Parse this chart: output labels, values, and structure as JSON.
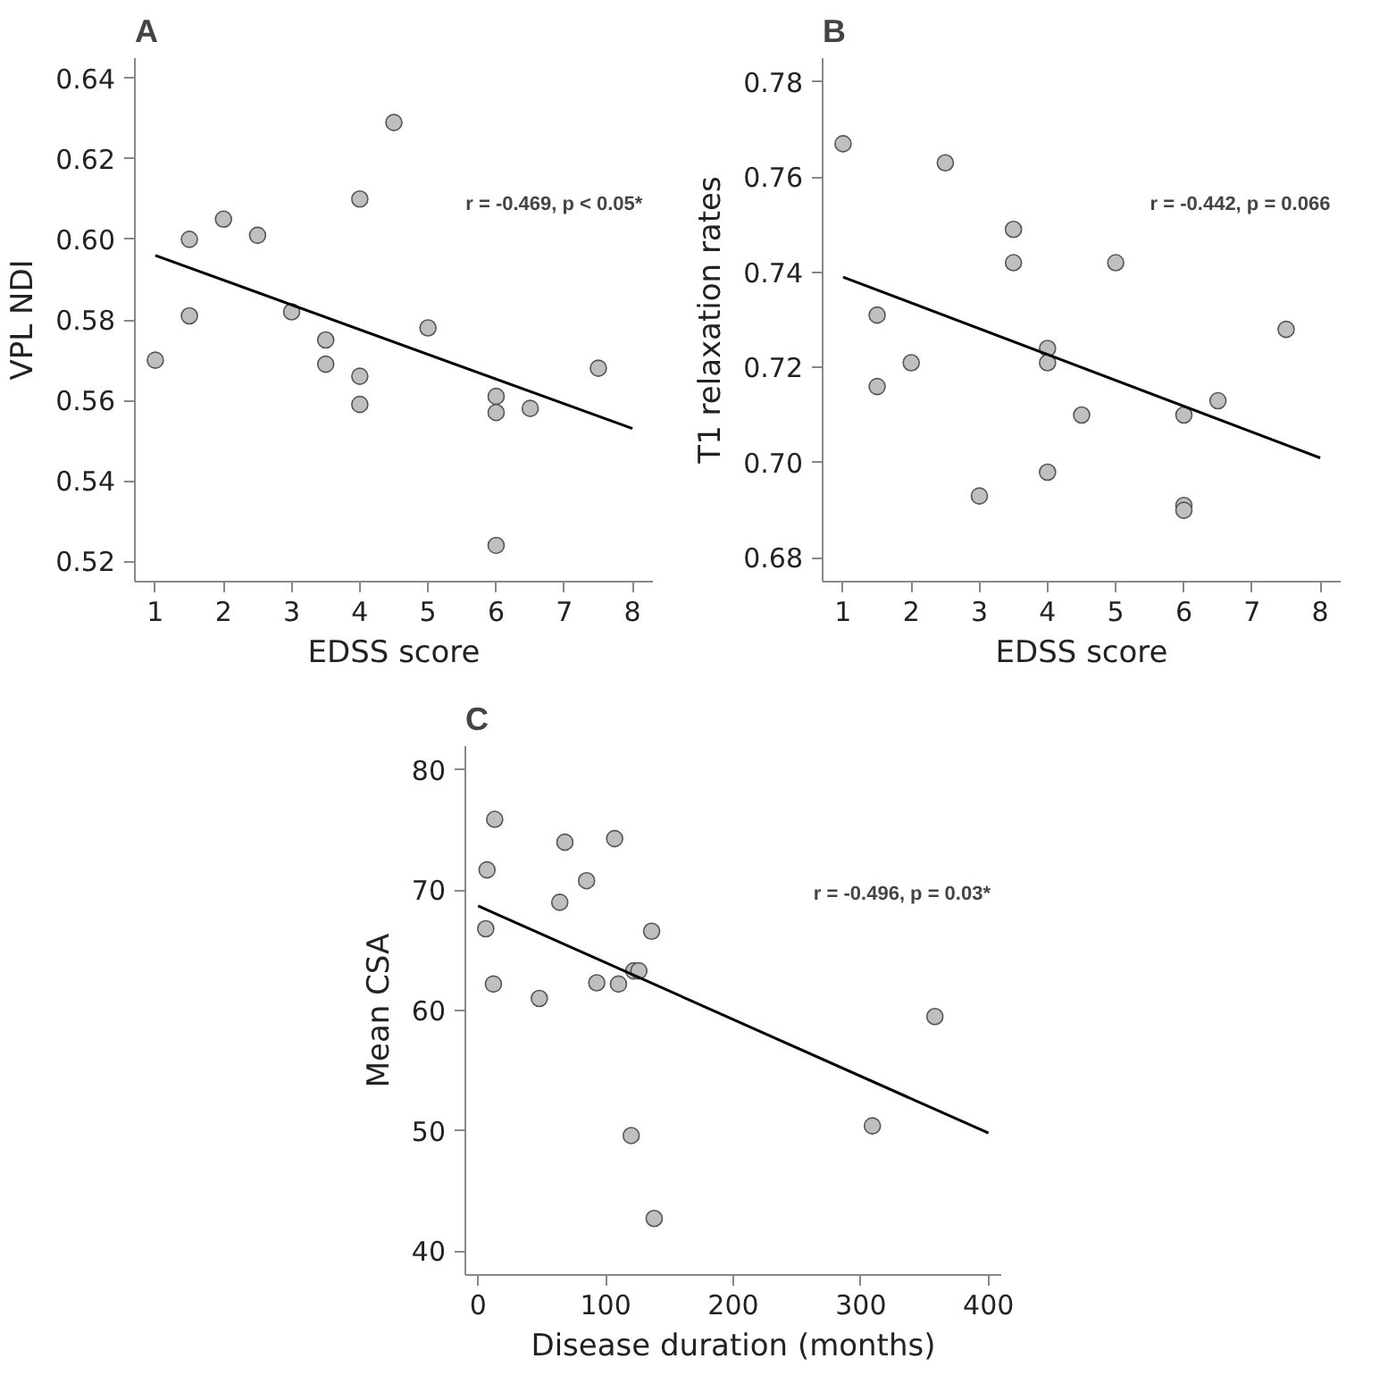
{
  "chart_data": [
    {
      "type": "scatter",
      "title": "A",
      "xlabel": "EDSS score",
      "ylabel": "VPL NDI",
      "xlim": [
        0.7,
        8.3
      ],
      "ylim": [
        0.515,
        0.645
      ],
      "xticks": [
        1,
        2,
        3,
        4,
        5,
        6,
        7,
        8
      ],
      "yticks": [
        0.52,
        0.54,
        0.56,
        0.58,
        {
          "value": 0.6,
          "label": "0.60"
        },
        0.62,
        0.64
      ],
      "grid": false,
      "annotations": [
        "r = -0.469, p < 0.05*"
      ],
      "series": [
        {
          "color": "#bfbfbf",
          "marker": "circle",
          "x": [
            1,
            1.5,
            1.5,
            2,
            2.5,
            3,
            3.5,
            3.5,
            4,
            4,
            4,
            4.5,
            5,
            6,
            6,
            6,
            6.5,
            7.5
          ],
          "values": [
            0.57,
            0.6,
            0.581,
            0.605,
            0.601,
            0.582,
            0.575,
            0.569,
            0.61,
            0.566,
            0.559,
            0.629,
            0.578,
            0.561,
            0.557,
            0.524,
            0.558,
            0.568
          ]
        },
        {
          "type": "line",
          "marker": "none",
          "color": "#000000",
          "x": [
            1,
            8
          ],
          "values": [
            0.596,
            0.553
          ]
        }
      ]
    },
    {
      "type": "scatter",
      "title": "B",
      "xlabel": "EDSS score",
      "ylabel": "T1 relaxation rates",
      "xlim": [
        0.7,
        8.3
      ],
      "ylim": [
        0.675,
        0.785
      ],
      "xticks": [
        1,
        2,
        3,
        4,
        5,
        6,
        7,
        8
      ],
      "yticks": [
        0.68,
        {
          "value": 0.7,
          "label": "0.70"
        },
        0.72,
        0.74,
        0.76,
        0.78
      ],
      "grid": false,
      "annotations": [
        "r = -0.442, p = 0.066"
      ],
      "series": [
        {
          "color": "#bfbfbf",
          "marker": "circle",
          "x": [
            1,
            1.5,
            1.5,
            2,
            2.5,
            3,
            3.5,
            3.5,
            4,
            4,
            4,
            4.5,
            5,
            6,
            6,
            6,
            6.5,
            7.5
          ],
          "values": [
            0.767,
            0.731,
            0.716,
            0.721,
            0.763,
            0.693,
            0.749,
            0.742,
            0.724,
            0.721,
            0.698,
            0.71,
            0.742,
            0.71,
            0.691,
            0.69,
            0.713,
            0.728
          ]
        },
        {
          "type": "line",
          "marker": "none",
          "color": "#000000",
          "x": [
            1,
            8
          ],
          "values": [
            0.739,
            0.701
          ]
        }
      ]
    },
    {
      "type": "scatter",
      "title": "C",
      "xlabel": "Disease duration (months)",
      "ylabel": "Mean CSA",
      "xlim": [
        -10,
        410
      ],
      "ylim": [
        38,
        82
      ],
      "xticks": [
        0,
        100,
        200,
        300,
        400
      ],
      "yticks": [
        40,
        50,
        60,
        70,
        80
      ],
      "grid": false,
      "annotations": [
        "r = -0.496, p = 0.03*"
      ],
      "series": [
        {
          "color": "#bfbfbf",
          "marker": "circle",
          "x": [
            13,
            7,
            68,
            107,
            85,
            64,
            6,
            136,
            12,
            48,
            93,
            110,
            122,
            126,
            120,
            138,
            309,
            358
          ],
          "values": [
            75.9,
            71.7,
            74.0,
            74.3,
            70.8,
            69.0,
            66.8,
            66.6,
            62.2,
            61.0,
            62.3,
            62.2,
            63.3,
            63.3,
            49.6,
            42.7,
            50.4,
            59.5
          ]
        },
        {
          "type": "line",
          "marker": "none",
          "color": "#000000",
          "x": [
            0,
            400
          ],
          "values": [
            68.7,
            49.8
          ]
        }
      ]
    }
  ]
}
